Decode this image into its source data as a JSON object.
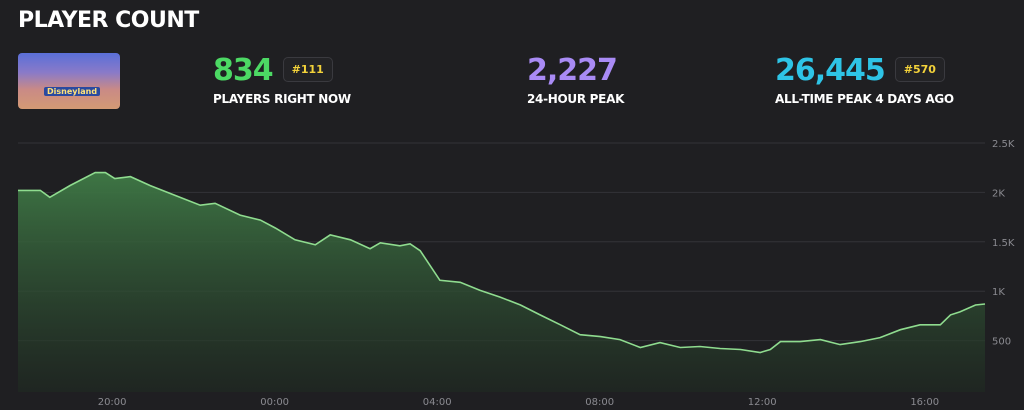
{
  "header": {
    "title": "PLAYER COUNT",
    "thumbnail_logo": "Disneyland"
  },
  "stats": {
    "current": {
      "value": "834",
      "rank": "#111",
      "label": "PLAYERS RIGHT NOW",
      "color": "#4cd964"
    },
    "peak24": {
      "value": "2,227",
      "label": "24-HOUR PEAK",
      "color": "#a98bf5"
    },
    "alltime": {
      "value": "26,445",
      "rank": "#570",
      "label": "ALL-TIME PEAK 4 DAYS AGO",
      "color": "#2ec4e6"
    }
  },
  "chart_data": {
    "type": "area",
    "ylim": [
      0,
      2500
    ],
    "yticks": [
      {
        "v": 500,
        "label": "500"
      },
      {
        "v": 1000,
        "label": "1K"
      },
      {
        "v": 1500,
        "label": "1.5K"
      },
      {
        "v": 2000,
        "label": "2K"
      },
      {
        "v": 2500,
        "label": "2.5K"
      }
    ],
    "xticks": [
      "20:00",
      "00:00",
      "04:00",
      "08:00",
      "12:00",
      "16:00"
    ],
    "grid": true,
    "line_color": "#8fdc8f",
    "points": [
      [
        "17:41",
        2020
      ],
      [
        "18:14",
        2020
      ],
      [
        "18:28",
        1950
      ],
      [
        "18:58",
        2070
      ],
      [
        "19:35",
        2200
      ],
      [
        "19:50",
        2200
      ],
      [
        "20:04",
        2140
      ],
      [
        "20:27",
        2160
      ],
      [
        "20:56",
        2070
      ],
      [
        "21:33",
        1970
      ],
      [
        "22:10",
        1870
      ],
      [
        "22:32",
        1890
      ],
      [
        "23:09",
        1770
      ],
      [
        "23:39",
        1720
      ],
      [
        "00:01",
        1640
      ],
      [
        "00:30",
        1520
      ],
      [
        "01:00",
        1470
      ],
      [
        "01:22",
        1570
      ],
      [
        "01:52",
        1520
      ],
      [
        "02:21",
        1430
      ],
      [
        "02:36",
        1490
      ],
      [
        "03:05",
        1460
      ],
      [
        "03:20",
        1480
      ],
      [
        "03:35",
        1410
      ],
      [
        "04:04",
        1110
      ],
      [
        "04:34",
        1090
      ],
      [
        "05:03",
        1010
      ],
      [
        "05:33",
        940
      ],
      [
        "06:03",
        860
      ],
      [
        "06:32",
        760
      ],
      [
        "07:02",
        660
      ],
      [
        "07:31",
        560
      ],
      [
        "08:01",
        540
      ],
      [
        "08:30",
        510
      ],
      [
        "09:00",
        430
      ],
      [
        "09:29",
        480
      ],
      [
        "09:59",
        430
      ],
      [
        "10:28",
        440
      ],
      [
        "10:58",
        420
      ],
      [
        "11:28",
        410
      ],
      [
        "11:57",
        380
      ],
      [
        "12:12",
        410
      ],
      [
        "12:27",
        490
      ],
      [
        "12:56",
        490
      ],
      [
        "13:26",
        510
      ],
      [
        "13:55",
        460
      ],
      [
        "14:25",
        490
      ],
      [
        "14:54",
        530
      ],
      [
        "15:24",
        610
      ],
      [
        "15:53",
        660
      ],
      [
        "16:23",
        660
      ],
      [
        "16:38",
        760
      ],
      [
        "16:52",
        790
      ],
      [
        "17:15",
        860
      ],
      [
        "17:29",
        870
      ]
    ]
  }
}
